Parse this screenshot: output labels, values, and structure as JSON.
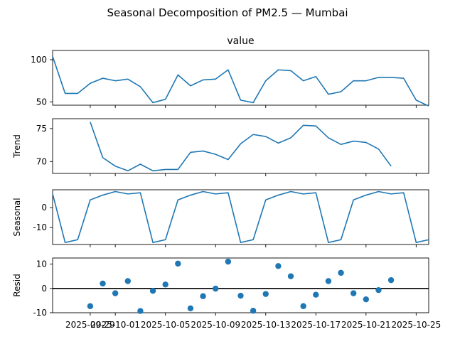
{
  "title": "Seasonal Decomposition of PM2.5 — Mumbai",
  "colors": {
    "line": "#1f77b4",
    "points": "#1f77b4",
    "zero_line": "#000000",
    "axis": "#000000"
  },
  "chart_data": [
    {
      "type": "line",
      "title": "value",
      "ylabel": "",
      "ylim": [
        46,
        111
      ],
      "yticks": [
        50,
        100
      ],
      "x": [
        "2025-09-26",
        "2025-09-27",
        "2025-09-28",
        "2025-09-29",
        "2025-09-30",
        "2025-10-01",
        "2025-10-02",
        "2025-10-03",
        "2025-10-04",
        "2025-10-05",
        "2025-10-06",
        "2025-10-07",
        "2025-10-08",
        "2025-10-09",
        "2025-10-10",
        "2025-10-11",
        "2025-10-12",
        "2025-10-13",
        "2025-10-14",
        "2025-10-15",
        "2025-10-16",
        "2025-10-17",
        "2025-10-18",
        "2025-10-19",
        "2025-10-20",
        "2025-10-21",
        "2025-10-22",
        "2025-10-23",
        "2025-10-24",
        "2025-10-25",
        "2025-10-26"
      ],
      "values": [
        104,
        60,
        60,
        72,
        78,
        75,
        77,
        68,
        49,
        53,
        82,
        69,
        76,
        77,
        88,
        52,
        49,
        75,
        88,
        87,
        75,
        80,
        59,
        62,
        75,
        75,
        79,
        79,
        78,
        52,
        45
      ]
    },
    {
      "type": "line",
      "title": "",
      "ylabel": "Trend",
      "ylim": [
        68.2,
        76.5
      ],
      "yticks": [
        70,
        75
      ],
      "x": [
        "2025-09-29",
        "2025-09-30",
        "2025-10-01",
        "2025-10-02",
        "2025-10-03",
        "2025-10-04",
        "2025-10-05",
        "2025-10-06",
        "2025-10-07",
        "2025-10-08",
        "2025-10-09",
        "2025-10-10",
        "2025-10-11",
        "2025-10-12",
        "2025-10-13",
        "2025-10-14",
        "2025-10-15",
        "2025-10-16",
        "2025-10-17",
        "2025-10-18",
        "2025-10-19",
        "2025-10-20",
        "2025-10-21",
        "2025-10-22",
        "2025-10-23"
      ],
      "values": [
        76,
        70.6,
        69.3,
        68.6,
        69.6,
        68.6,
        68.8,
        68.8,
        71.4,
        71.6,
        71.1,
        70.3,
        72.7,
        74.1,
        73.8,
        72.8,
        73.6,
        75.5,
        75.4,
        73.6,
        72.6,
        73.1,
        72.9,
        71.9,
        69.3
      ]
    },
    {
      "type": "line",
      "title": "",
      "ylabel": "Seasonal",
      "ylim": [
        -18.5,
        9
      ],
      "yticks": [
        -10,
        0
      ],
      "x": [
        "2025-09-26",
        "2025-09-27",
        "2025-09-28",
        "2025-09-29",
        "2025-09-30",
        "2025-10-01",
        "2025-10-02",
        "2025-10-03",
        "2025-10-04",
        "2025-10-05",
        "2025-10-06",
        "2025-10-07",
        "2025-10-08",
        "2025-10-09",
        "2025-10-10",
        "2025-10-11",
        "2025-10-12",
        "2025-10-13",
        "2025-10-14",
        "2025-10-15",
        "2025-10-16",
        "2025-10-17",
        "2025-10-18",
        "2025-10-19",
        "2025-10-20",
        "2025-10-21",
        "2025-10-22",
        "2025-10-23",
        "2025-10-24",
        "2025-10-25",
        "2025-10-26"
      ],
      "values": [
        7,
        -17.5,
        -16.1,
        3.9,
        6.3,
        8.1,
        6.9,
        7.5,
        -17.5,
        -16.1,
        3.9,
        6.3,
        8.1,
        6.9,
        7.5,
        -17.5,
        -16.1,
        3.9,
        6.3,
        8.1,
        6.9,
        7.5,
        -17.5,
        -16.1,
        3.9,
        6.3,
        8.1,
        6.9,
        7.5,
        -17.5,
        -16.1
      ]
    },
    {
      "type": "scatter",
      "title": "",
      "ylabel": "Resid",
      "ylim": [
        -10,
        12.5
      ],
      "yticks": [
        -10,
        0,
        10
      ],
      "zero_line": true,
      "xlim": [
        "2025-09-26",
        "2025-10-26"
      ],
      "xticks": [
        "2025-09-29",
        "2025-10-01",
        "2025-10-05",
        "2025-10-09",
        "2025-10-13",
        "2025-10-17",
        "2025-10-21",
        "2025-10-25"
      ],
      "x": [
        "2025-09-29",
        "2025-09-30",
        "2025-10-01",
        "2025-10-02",
        "2025-10-03",
        "2025-10-04",
        "2025-10-05",
        "2025-10-06",
        "2025-10-07",
        "2025-10-08",
        "2025-10-09",
        "2025-10-10",
        "2025-10-11",
        "2025-10-12",
        "2025-10-13",
        "2025-10-14",
        "2025-10-15",
        "2025-10-16",
        "2025-10-17",
        "2025-10-18",
        "2025-10-19",
        "2025-10-20",
        "2025-10-21",
        "2025-10-22",
        "2025-10-23"
      ],
      "values": [
        -7.3,
        2,
        -2,
        3,
        -9.3,
        -1,
        1.6,
        10.2,
        -8.2,
        -3.2,
        -0.1,
        11,
        -3,
        -9.2,
        -2.3,
        9.2,
        5,
        -7.3,
        -2.6,
        3,
        6.4,
        -2,
        -4.5,
        -0.7,
        3.4
      ]
    }
  ]
}
